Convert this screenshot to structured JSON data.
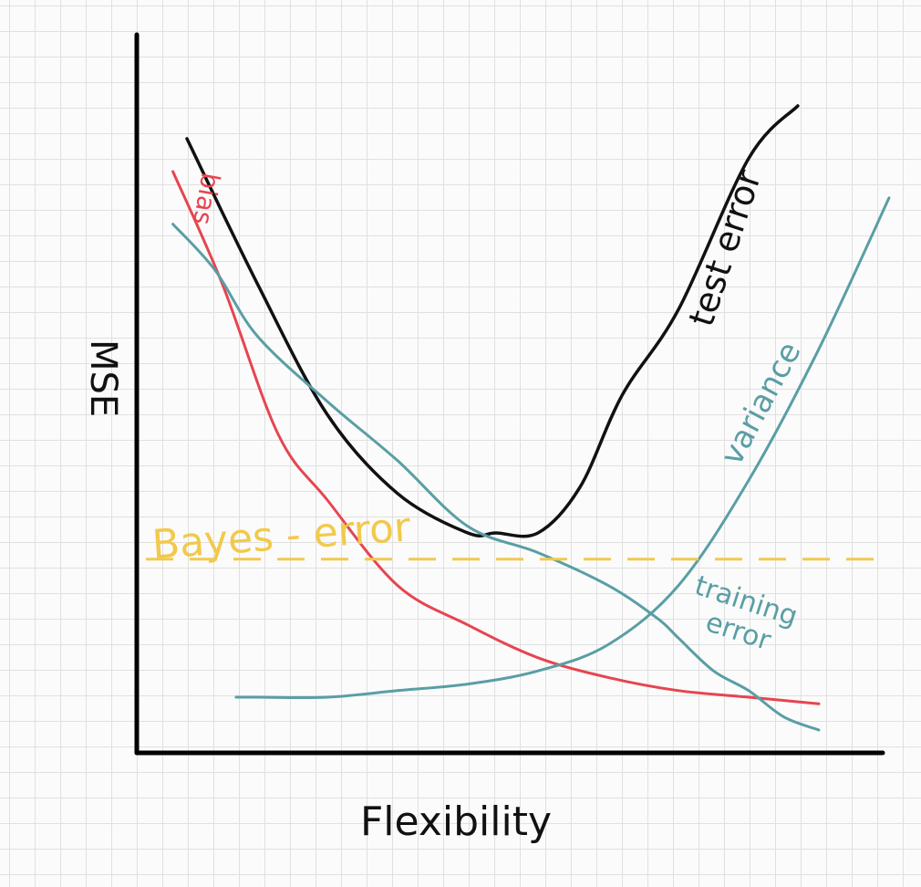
{
  "chart_data": {
    "type": "line",
    "title": "",
    "xlabel": "Flexibility",
    "ylabel": "MSE",
    "x_range": [
      0,
      100
    ],
    "y_range": [
      0,
      100
    ],
    "grid": true,
    "series": [
      {
        "name": "test error",
        "color": "#111111",
        "x": [
          0,
          10,
          20,
          30,
          40,
          44,
          50,
          56,
          62,
          70,
          80,
          87
        ],
        "y": [
          90,
          68,
          48,
          36,
          30,
          30,
          30,
          37,
          51,
          64,
          87,
          95
        ]
      },
      {
        "name": "bias",
        "color": "#e64550",
        "x": [
          -2,
          5,
          13,
          20,
          30,
          40,
          50,
          60,
          70,
          80,
          90
        ],
        "y": [
          85,
          68,
          45,
          35,
          22,
          16,
          11,
          8,
          6,
          5,
          4
        ]
      },
      {
        "name": "variance",
        "color": "#5a9ea5",
        "x": [
          7,
          10,
          20,
          30,
          40,
          50,
          60,
          70,
          80,
          90,
          100
        ],
        "y": [
          5,
          5,
          5,
          6,
          7,
          9,
          13,
          22,
          38,
          58,
          81
        ]
      },
      {
        "name": "training error",
        "color": "#5a9ea5",
        "x": [
          -2,
          4,
          10,
          20,
          30,
          40,
          50,
          60,
          67,
          70,
          75,
          80,
          85,
          90
        ],
        "y": [
          77,
          70,
          60,
          50,
          41,
          31,
          27,
          22,
          17,
          14,
          9,
          6,
          2,
          0
        ]
      }
    ],
    "reference_lines": [
      {
        "name": "Bayes - error",
        "color": "#f2c94c",
        "y": 26,
        "style": "dashed"
      }
    ]
  }
}
